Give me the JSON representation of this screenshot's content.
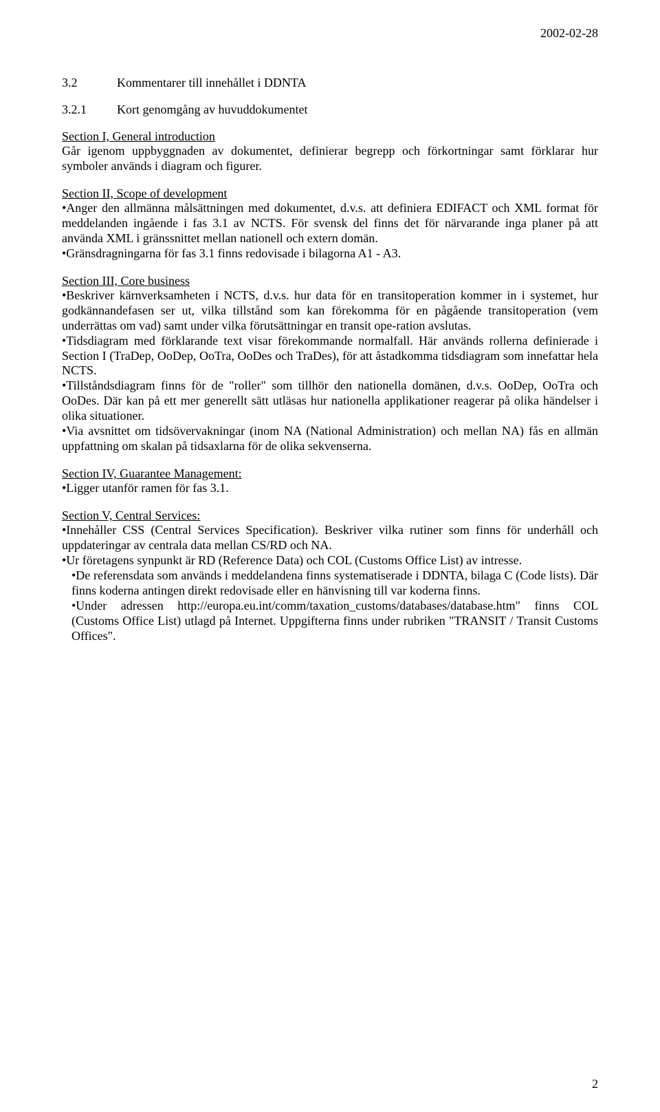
{
  "meta": {
    "date": "2002-02-28",
    "page_number": "2"
  },
  "headings": {
    "h1_num": "3.2",
    "h1_text": "Kommentarer till innehållet i DDNTA",
    "h2_num": "3.2.1",
    "h2_text": "Kort genomgång av huvuddokumentet"
  },
  "section1": {
    "title": "Section I, General introduction",
    "para": "Går igenom uppbyggnaden av dokumentet, definierar begrepp och förkortningar samt förklarar hur symboler används i diagram och figurer."
  },
  "section2": {
    "title": "Section II, Scope of development",
    "b1": "•Anger den allmänna målsättningen med dokumentet, d.v.s. att definiera EDIFACT och XML format för meddelanden ingående i fas 3.1 av NCTS. För svensk del finns det för närvarande inga planer på att använda XML i gränssnittet mellan nationell och extern domän.",
    "b2": "•Gränsdragningarna för fas 3.1 finns redovisade i bilagorna A1 - A3."
  },
  "section3": {
    "title": "Section III, Core business",
    "b1": "•Beskriver kärnverksamheten i NCTS, d.v.s. hur data för en transitoperation kommer in i systemet, hur godkännandefasen ser ut, vilka tillstånd som kan förekomma för en pågående transitoperation (vem underrättas om vad) samt under vilka förutsättningar en transit ope-ration avslutas.",
    "b2": "•Tidsdiagram med förklarande text visar förekommande normalfall. Här används rollerna definierade i Section I (TraDep, OoDep, OoTra, OoDes och TraDes), för att åstadkomma tidsdiagram som innefattar hela NCTS.",
    "b3": "•Tillståndsdiagram finns för de \"roller\" som tillhör den nationella domänen, d.v.s. OoDep, OoTra och OoDes. Där kan på ett mer generellt sätt utläsas hur nationella applikationer reagerar på olika händelser i olika situationer.",
    "b4": "•Via avsnittet om tidsövervakningar (inom NA (National Administration) och mellan NA) fås en allmän uppfattning om skalan på tidsaxlarna för de olika sekvenserna."
  },
  "section4": {
    "title": "Section IV, Guarantee Management:",
    "b1": "•Ligger utanför ramen för fas 3.1."
  },
  "section5": {
    "title": "Section V, Central Services:",
    "b1": "•Innehåller CSS (Central Services Specification). Beskriver vilka rutiner som finns för underhåll och uppdateringar av centrala data mellan CS/RD och NA.",
    "b2": "•Ur företagens synpunkt är RD (Reference Data) och COL (Customs Office List) av intresse.",
    "b3": "•De referensdata som används i meddelandena finns systematiserade i DDNTA, bilaga C (Code lists).  Där finns koderna antingen direkt redovisade eller en hänvisning till var koderna finns.",
    "b4": "•Under adressen http://europa.eu.int/comm/taxation_customs/databases/database.htm\" finns COL (Customs Office List) utlagd på Internet. Uppgifterna finns under rubriken \"TRANSIT / Transit Customs Offices\"."
  }
}
